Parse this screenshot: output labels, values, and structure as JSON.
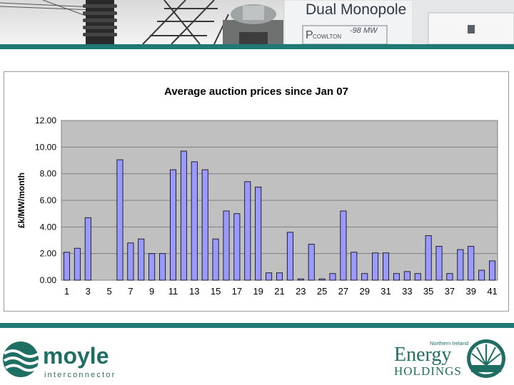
{
  "banner": {
    "sign_title": "Dual Monopole",
    "sign_station": "COWLTON",
    "sign_prefix": "P",
    "sign_value": "-98 MW"
  },
  "chart_data": {
    "type": "bar",
    "title": "Average auction prices since Jan 07",
    "xlabel": "",
    "ylabel": "£k/MW/month",
    "ylim": [
      0,
      12
    ],
    "yticks": [
      "0.00",
      "2.00",
      "4.00",
      "6.00",
      "8.00",
      "10.00",
      "12.00"
    ],
    "xtick_labels": [
      "1",
      "3",
      "5",
      "7",
      "9",
      "11",
      "13",
      "15",
      "17",
      "19",
      "21",
      "23",
      "25",
      "27",
      "29",
      "31",
      "33",
      "35",
      "37",
      "39",
      "41"
    ],
    "grid": true,
    "legend": "none",
    "bar_color": "#9999ff",
    "plot_bg": "#c0c0c0",
    "categories": [
      "1",
      "2",
      "3",
      "4",
      "5",
      "6",
      "7",
      "8",
      "9",
      "10",
      "11",
      "12",
      "13",
      "14",
      "15",
      "16",
      "17",
      "18",
      "19",
      "20",
      "21",
      "22",
      "23",
      "24",
      "25",
      "26",
      "27",
      "28",
      "29",
      "30",
      "31",
      "32",
      "33",
      "34",
      "35",
      "36",
      "37",
      "38",
      "39",
      "40",
      "41"
    ],
    "values": [
      2.1,
      2.4,
      4.7,
      0,
      0,
      9.05,
      2.8,
      3.1,
      2.0,
      2.0,
      8.3,
      9.7,
      8.9,
      8.3,
      3.1,
      5.2,
      5.0,
      7.4,
      7.0,
      0.55,
      0.55,
      3.6,
      0.1,
      2.7,
      0.1,
      0.5,
      5.2,
      2.1,
      0.5,
      2.05,
      2.05,
      0.5,
      0.65,
      0.5,
      3.35,
      2.55,
      0.5,
      2.3,
      2.55,
      0.75,
      1.45
    ]
  },
  "logos": {
    "moyle_name": "moyle",
    "moyle_tagline": "interconnector",
    "neh_top": "Northern Ireland",
    "neh_energy": "Energy",
    "neh_holdings": "HOLDINGS"
  },
  "colors": {
    "teal": "#1e7a72",
    "bar": "#9999ff",
    "plot_background": "#c0c0c0"
  }
}
